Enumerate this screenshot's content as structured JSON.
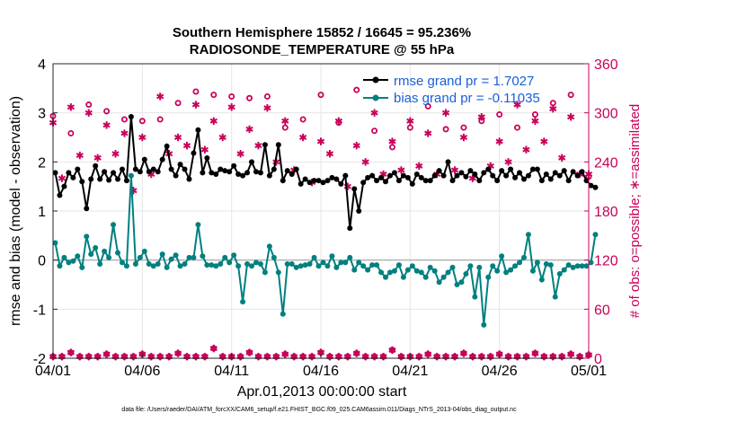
{
  "chart_data": {
    "type": "line",
    "title": "Southern Hemisphere 15852 / 16645 = 95.236%",
    "subtitle": "RADIOSONDE_TEMPERATURE @ 55 hPa",
    "xlabel": "Apr.01,2013 00:00:00 start",
    "ylabel": "rmse and bias (model - observation)",
    "y2label": "# of obs: o=possible; ∗=assimilated",
    "footer": "data file: /Users/raeder/DAI/ATM_forcXX/CAM6_setup/f.e21.FHIST_BGC.f09_025.CAM6assim.011/Diags_NTrS_2013-04/obs_diag_output.nc",
    "xlim": [
      0,
      30
    ],
    "ylim": [
      -2,
      4
    ],
    "y2lim": [
      0,
      360
    ],
    "xticks": [
      {
        "value": 0,
        "label": "04/01"
      },
      {
        "value": 5,
        "label": "04/06"
      },
      {
        "value": 10,
        "label": "04/11"
      },
      {
        "value": 15,
        "label": "04/16"
      },
      {
        "value": 20,
        "label": "04/21"
      },
      {
        "value": 25,
        "label": "04/26"
      },
      {
        "value": 30,
        "label": "05/01"
      }
    ],
    "yticks": [
      "4",
      "3",
      "2",
      "1",
      "0",
      "-1",
      "-2"
    ],
    "y2ticks": [
      "360",
      "300",
      "240",
      "180",
      "120",
      "60",
      "0"
    ],
    "x_step_days": 0.25,
    "series": [
      {
        "name": "rmse",
        "legend": "rmse grand pr = 1.7027",
        "color": "#000000",
        "values": [
          1.78,
          1.32,
          1.5,
          1.78,
          1.68,
          1.85,
          1.6,
          1.05,
          1.65,
          1.92,
          1.65,
          1.8,
          1.63,
          1.78,
          1.65,
          1.85,
          1.62,
          2.92,
          1.85,
          1.8,
          2.05,
          1.8,
          1.85,
          1.8,
          2.05,
          2.32,
          1.85,
          1.72,
          1.95,
          1.85,
          1.65,
          2.18,
          2.65,
          1.78,
          2.08,
          1.78,
          1.75,
          1.85,
          1.82,
          1.8,
          1.92,
          1.75,
          1.72,
          1.78,
          2.0,
          1.8,
          1.78,
          2.35,
          1.72,
          1.85,
          2.35,
          1.62,
          1.82,
          1.75,
          1.85,
          1.55,
          1.65,
          1.58,
          1.62,
          1.62,
          1.58,
          1.62,
          1.68,
          1.65,
          1.55,
          1.72,
          0.65,
          1.45,
          1.0,
          1.58,
          1.68,
          1.72,
          1.62,
          1.68,
          1.6,
          1.72,
          1.78,
          1.62,
          1.72,
          1.68,
          1.55,
          1.75,
          1.68,
          1.62,
          1.62,
          1.72,
          1.82,
          1.72,
          2.0,
          1.62,
          1.72,
          1.78,
          1.7,
          1.82,
          1.75,
          1.62,
          1.78,
          1.85,
          1.72,
          1.62,
          1.82,
          1.72,
          1.85,
          1.68,
          1.78,
          1.65,
          1.72,
          1.85,
          1.85,
          1.62,
          1.75,
          1.65,
          1.78,
          1.72,
          1.82,
          1.62,
          1.8,
          1.72,
          1.8,
          1.62,
          1.52,
          1.48
        ]
      },
      {
        "name": "bias",
        "legend": "bias grand pr = -0.11035",
        "color": "#00807f",
        "values": [
          0.35,
          -0.12,
          0.05,
          -0.05,
          -0.02,
          0.08,
          -0.15,
          0.48,
          0.12,
          0.25,
          -0.08,
          0.18,
          0.05,
          0.72,
          0.15,
          -0.05,
          -0.12,
          1.72,
          -0.08,
          0.05,
          0.18,
          -0.08,
          -0.12,
          -0.08,
          0.12,
          -0.15,
          0.02,
          0.1,
          -0.12,
          -0.08,
          0.05,
          0.05,
          0.72,
          0.08,
          -0.1,
          -0.1,
          -0.12,
          -0.08,
          0.05,
          -0.05,
          0.1,
          -0.12,
          -0.85,
          -0.08,
          -0.12,
          -0.05,
          -0.08,
          -0.25,
          0.28,
          0.05,
          -0.25,
          -1.1,
          -0.08,
          -0.08,
          -0.15,
          -0.12,
          -0.1,
          -0.08,
          0.05,
          -0.12,
          -0.05,
          -0.12,
          0.08,
          -0.15,
          -0.05,
          -0.05,
          0.05,
          -0.2,
          -0.05,
          -0.12,
          -0.2,
          -0.1,
          -0.1,
          -0.25,
          -0.35,
          -0.25,
          -0.22,
          -0.1,
          -0.35,
          -0.2,
          -0.12,
          -0.22,
          -0.25,
          -0.35,
          -0.15,
          -0.22,
          -0.45,
          -0.35,
          -0.25,
          -0.15,
          -0.5,
          -0.45,
          -0.28,
          -0.12,
          -0.75,
          -0.15,
          -1.32,
          -0.35,
          -0.12,
          -0.22,
          0.08,
          -0.25,
          -0.2,
          -0.12,
          -0.05,
          0.05,
          0.52,
          -0.22,
          -0.05,
          -0.4,
          -0.08,
          -0.1,
          -0.75,
          -0.28,
          -0.2,
          -0.1,
          -0.15,
          -0.12,
          -0.12,
          -0.12,
          -0.05,
          0.52
        ]
      }
    ],
    "obs_possible": {
      "name": "possible",
      "marker": "o",
      "color": "#c8005a",
      "x": [
        0,
        1,
        2,
        3,
        4,
        5,
        6,
        7,
        8,
        9,
        10,
        11,
        12,
        13,
        14,
        15,
        16,
        17,
        18,
        19,
        20,
        21,
        22,
        23,
        24,
        25,
        26,
        27,
        28,
        29,
        30
      ],
      "values": [
        296,
        275,
        310,
        302,
        292,
        290,
        292,
        312,
        326,
        322,
        320,
        318,
        320,
        282,
        292,
        322,
        288,
        328,
        278,
        258,
        282,
        308,
        280,
        282,
        290,
        298,
        282,
        298,
        312,
        322,
        222
      ]
    },
    "obs_assimilated": {
      "name": "assimilated",
      "marker": "*",
      "color": "#c8005a",
      "x": [
        0,
        0.5,
        1,
        1.5,
        2,
        2.5,
        3,
        3.5,
        4,
        4.5,
        5,
        5.5,
        6,
        6.5,
        7,
        7.5,
        8,
        8.5,
        9,
        9.5,
        10,
        10.5,
        11,
        11.5,
        12,
        12.5,
        13,
        13.5,
        14,
        14.5,
        15,
        15.5,
        16,
        16.5,
        17,
        17.5,
        18,
        18.5,
        19,
        19.5,
        20,
        20.5,
        21,
        21.5,
        22,
        22.5,
        23,
        23.5,
        24,
        24.5,
        25,
        25.5,
        26,
        26.5,
        27,
        27.5,
        28,
        28.5,
        29,
        29.5,
        30
      ],
      "values": [
        288,
        220,
        307,
        248,
        300,
        245,
        285,
        250,
        275,
        205,
        270,
        225,
        320,
        250,
        270,
        260,
        310,
        255,
        290,
        270,
        307,
        250,
        280,
        260,
        306,
        240,
        290,
        230,
        270,
        215,
        265,
        250,
        290,
        210,
        260,
        240,
        300,
        225,
        265,
        230,
        290,
        235,
        275,
        225,
        300,
        230,
        270,
        220,
        295,
        235,
        265,
        240,
        310,
        255,
        290,
        265,
        305,
        245,
        295,
        225,
        225
      ]
    },
    "bottom_possible": {
      "x": [
        0,
        0.5,
        1,
        1.5,
        2,
        2.5,
        3,
        3.5,
        4,
        4.5,
        5,
        5.5,
        6,
        6.5,
        7,
        7.5,
        8,
        8.5,
        9,
        9.5,
        10,
        10.5,
        11,
        11.5,
        12,
        12.5,
        13,
        13.5,
        14,
        14.5,
        15,
        15.5,
        16,
        16.5,
        17,
        17.5,
        18,
        18.5,
        19,
        19.5,
        20,
        20.5,
        21,
        21.5,
        22,
        22.5,
        23,
        23.5,
        24,
        24.5,
        25,
        25.5,
        26,
        26.5,
        27,
        27.5,
        28,
        28.5,
        29,
        29.5,
        30
      ],
      "values": [
        2,
        2,
        7,
        2,
        2,
        2,
        5,
        2,
        2,
        2,
        5,
        2,
        2,
        2,
        6,
        2,
        2,
        2,
        12,
        2,
        2,
        2,
        7,
        2,
        2,
        2,
        5,
        2,
        2,
        2,
        7,
        2,
        2,
        2,
        6,
        2,
        2,
        2,
        10,
        2,
        2,
        2,
        5,
        2,
        2,
        2,
        6,
        2,
        2,
        2,
        5,
        2,
        2,
        2,
        6,
        2,
        2,
        2,
        5,
        2,
        4
      ]
    }
  }
}
